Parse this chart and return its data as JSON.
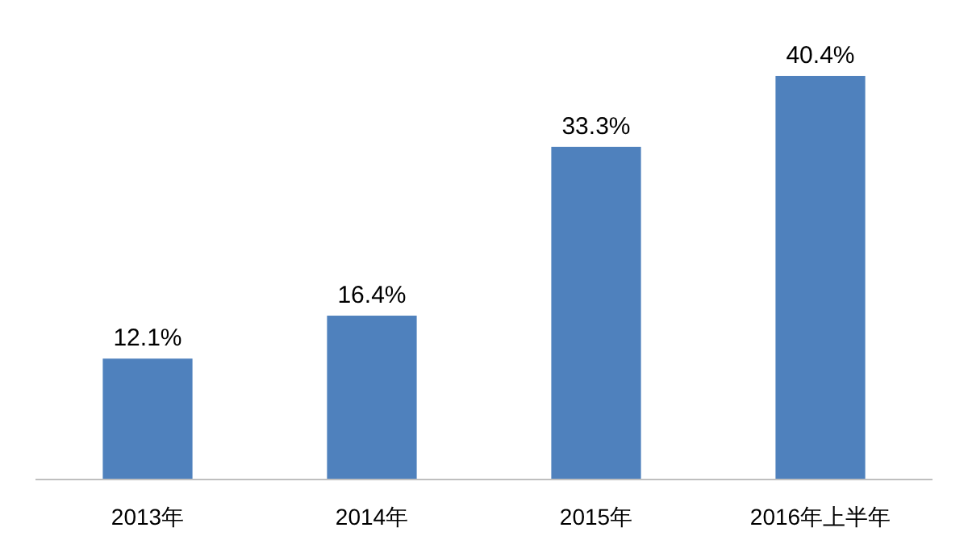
{
  "chart_data": {
    "type": "bar",
    "categories": [
      "2013年",
      "2014年",
      "2015年",
      "2016年上半年"
    ],
    "values": [
      12.1,
      16.4,
      33.3,
      40.4
    ],
    "value_labels": [
      "12.1%",
      "16.4%",
      "33.3%",
      "40.4%"
    ],
    "color": "#4f81bd"
  }
}
